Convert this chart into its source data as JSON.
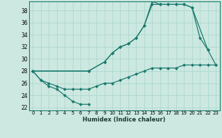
{
  "xlabel": "Humidex (Indice chaleur)",
  "xlim": [
    -0.5,
    23.5
  ],
  "ylim": [
    21.5,
    39.5
  ],
  "xticks": [
    0,
    1,
    2,
    3,
    4,
    5,
    6,
    7,
    8,
    9,
    10,
    11,
    12,
    13,
    14,
    15,
    16,
    17,
    18,
    19,
    20,
    21,
    22,
    23
  ],
  "yticks": [
    22,
    24,
    26,
    28,
    30,
    32,
    34,
    36,
    38
  ],
  "line_color": "#1a7a6e",
  "bg_color": "#cce8e0",
  "grid_color": "#a8d4cc",
  "series": [
    {
      "x": [
        0,
        1,
        2,
        3,
        4,
        5,
        6,
        7
      ],
      "y": [
        28,
        26.5,
        25.5,
        25,
        24,
        23,
        22.5,
        22.5
      ]
    },
    {
      "x": [
        0,
        1,
        2,
        3,
        4,
        5,
        6,
        7,
        8,
        9,
        10,
        11,
        12,
        13,
        14,
        15,
        16,
        17,
        18,
        19,
        20,
        21,
        22,
        23
      ],
      "y": [
        28,
        26.5,
        26,
        25.5,
        25,
        25,
        25,
        25,
        25.5,
        26,
        26,
        26.5,
        27,
        27.5,
        28,
        28.5,
        28.5,
        28.5,
        28.5,
        29,
        29,
        29,
        29,
        29
      ]
    },
    {
      "x": [
        0,
        7,
        9,
        10,
        11,
        12,
        13,
        14,
        15,
        16,
        17,
        18,
        19,
        20,
        21,
        22
      ],
      "y": [
        28,
        28,
        29.5,
        31,
        32,
        32.5,
        33.5,
        35.5,
        39,
        39,
        39,
        39,
        39,
        38.5,
        33.5,
        31.5
      ]
    },
    {
      "x": [
        0,
        7,
        9,
        10,
        11,
        12,
        13,
        14,
        15,
        16,
        17,
        18,
        19,
        20,
        22,
        23
      ],
      "y": [
        28,
        28,
        29.5,
        31,
        32,
        32.5,
        33.5,
        35.5,
        39.5,
        39,
        39,
        39,
        39,
        38.5,
        31.5,
        29
      ]
    }
  ]
}
